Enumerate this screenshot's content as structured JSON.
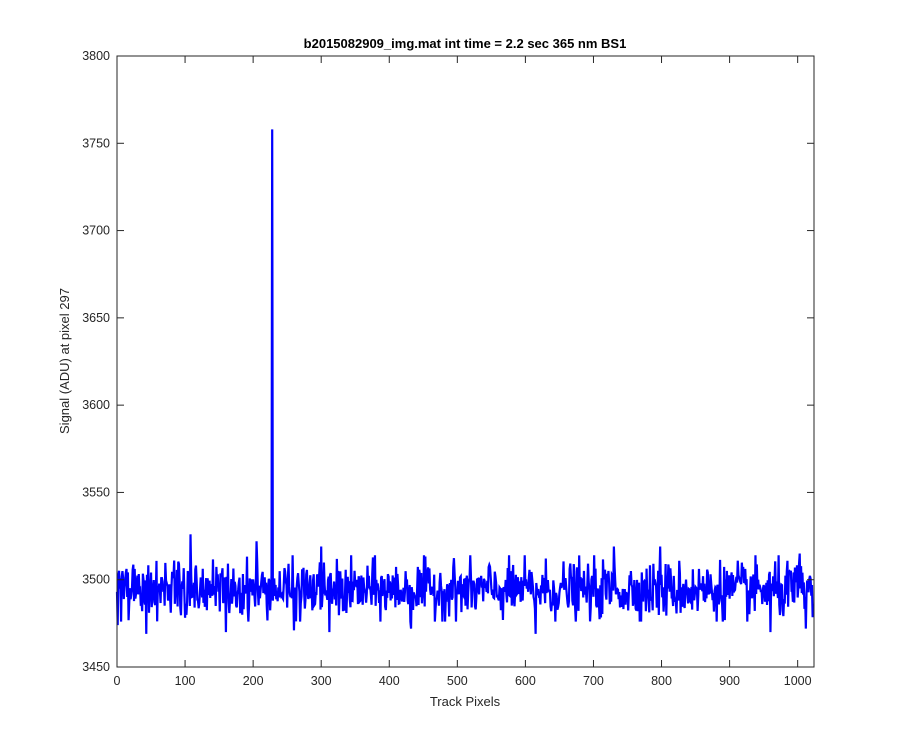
{
  "chart_data": {
    "type": "line",
    "title": "b2015082909_img.mat int time = 2.2 sec  365 nm BS1",
    "xlabel": "Track Pixels",
    "ylabel": "Signal (ADU) at pixel 297",
    "xlim": [
      0,
      1024
    ],
    "ylim": [
      3450,
      3800
    ],
    "xticks": [
      0,
      100,
      200,
      300,
      400,
      500,
      600,
      700,
      800,
      900,
      1000
    ],
    "yticks": [
      3450,
      3500,
      3550,
      3600,
      3650,
      3700,
      3750,
      3800
    ],
    "grid": false,
    "line_color": "#0000ff",
    "series": [
      {
        "baseline": 3494,
        "noise_std": 8,
        "n_points": 1024,
        "notable_points": [
          {
            "x": 1,
            "y": 3474
          },
          {
            "x": 43,
            "y": 3469
          },
          {
            "x": 108,
            "y": 3526
          },
          {
            "x": 160,
            "y": 3470
          },
          {
            "x": 205,
            "y": 3522
          },
          {
            "x": 228,
            "y": 3758
          },
          {
            "x": 229,
            "y": 3488
          },
          {
            "x": 260,
            "y": 3471
          },
          {
            "x": 300,
            "y": 3519
          },
          {
            "x": 312,
            "y": 3470
          },
          {
            "x": 432,
            "y": 3472
          },
          {
            "x": 615,
            "y": 3469
          },
          {
            "x": 730,
            "y": 3519
          },
          {
            "x": 798,
            "y": 3519
          },
          {
            "x": 960,
            "y": 3470
          },
          {
            "x": 1003,
            "y": 3515
          },
          {
            "x": 1012,
            "y": 3472
          }
        ]
      }
    ]
  }
}
